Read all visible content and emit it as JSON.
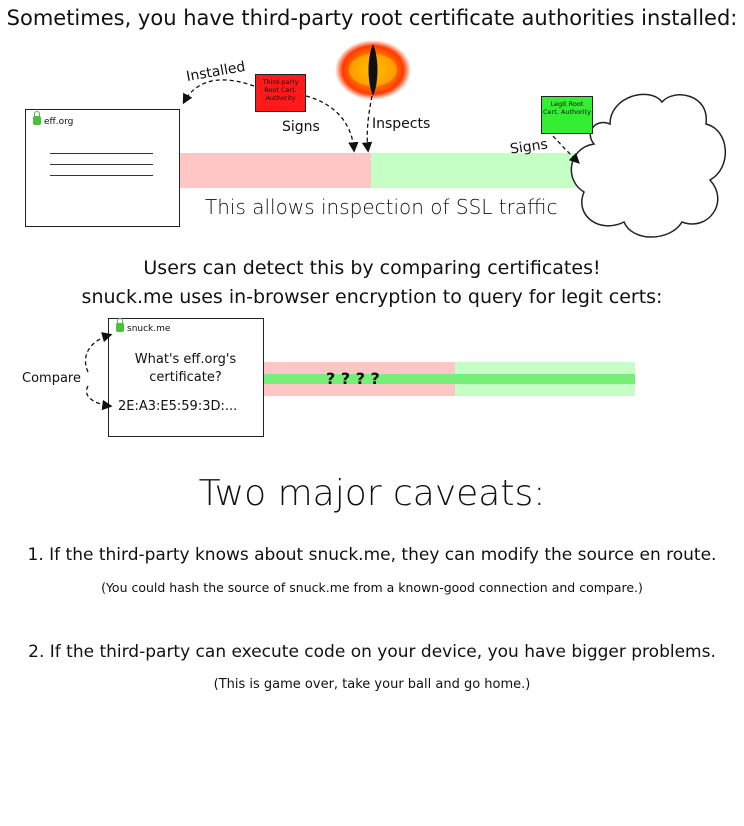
{
  "heading1": "Sometimes, you have third-party root certificate authorities installed:",
  "top": {
    "browser_site": "eff.org",
    "third_party_cert": "Third-party Root Cert. Authority",
    "legit_cert": "Legit Root Cert. Authority",
    "label_installed": "Installed",
    "label_signs_left": "Signs",
    "label_inspects": "Inspects",
    "label_signs_right": "Signs",
    "caption": "This allows inspection of SSL traffic"
  },
  "heading2_line1": "Users can detect this by comparing certificates!",
  "heading2_line2": "snuck.me uses in-browser encryption to query for legit certs:",
  "middle": {
    "browser_site": "snuck.me",
    "question_line1": "What's eff.org's",
    "question_line2": "certificate?",
    "fingerprint": "2E:A3:E5:59:3D:...",
    "label_compare": "Compare",
    "unknowns": "? ? ? ?"
  },
  "caveats_title": "Two major caveats:",
  "caveat1": "1. If the third-party knows about snuck.me, they can modify the source en route.",
  "caveat1_note": "(You could hash the source of snuck.me from a known-good connection and compare.)",
  "caveat2": "2. If the third-party can execute code on your device, you have bigger problems.",
  "caveat2_note": "(This is game over, take your ball and go home.)",
  "colors": {
    "third_party_cert": "#ff1a1a",
    "legit_cert": "#33ee33",
    "red_bar": "#ffc6c6",
    "green_bar": "#c6ffc6",
    "green_line": "#77ee77",
    "lock": "#49c23a"
  },
  "icons": [
    "lock-icon",
    "evil-eye-icon",
    "cloud-icon"
  ]
}
